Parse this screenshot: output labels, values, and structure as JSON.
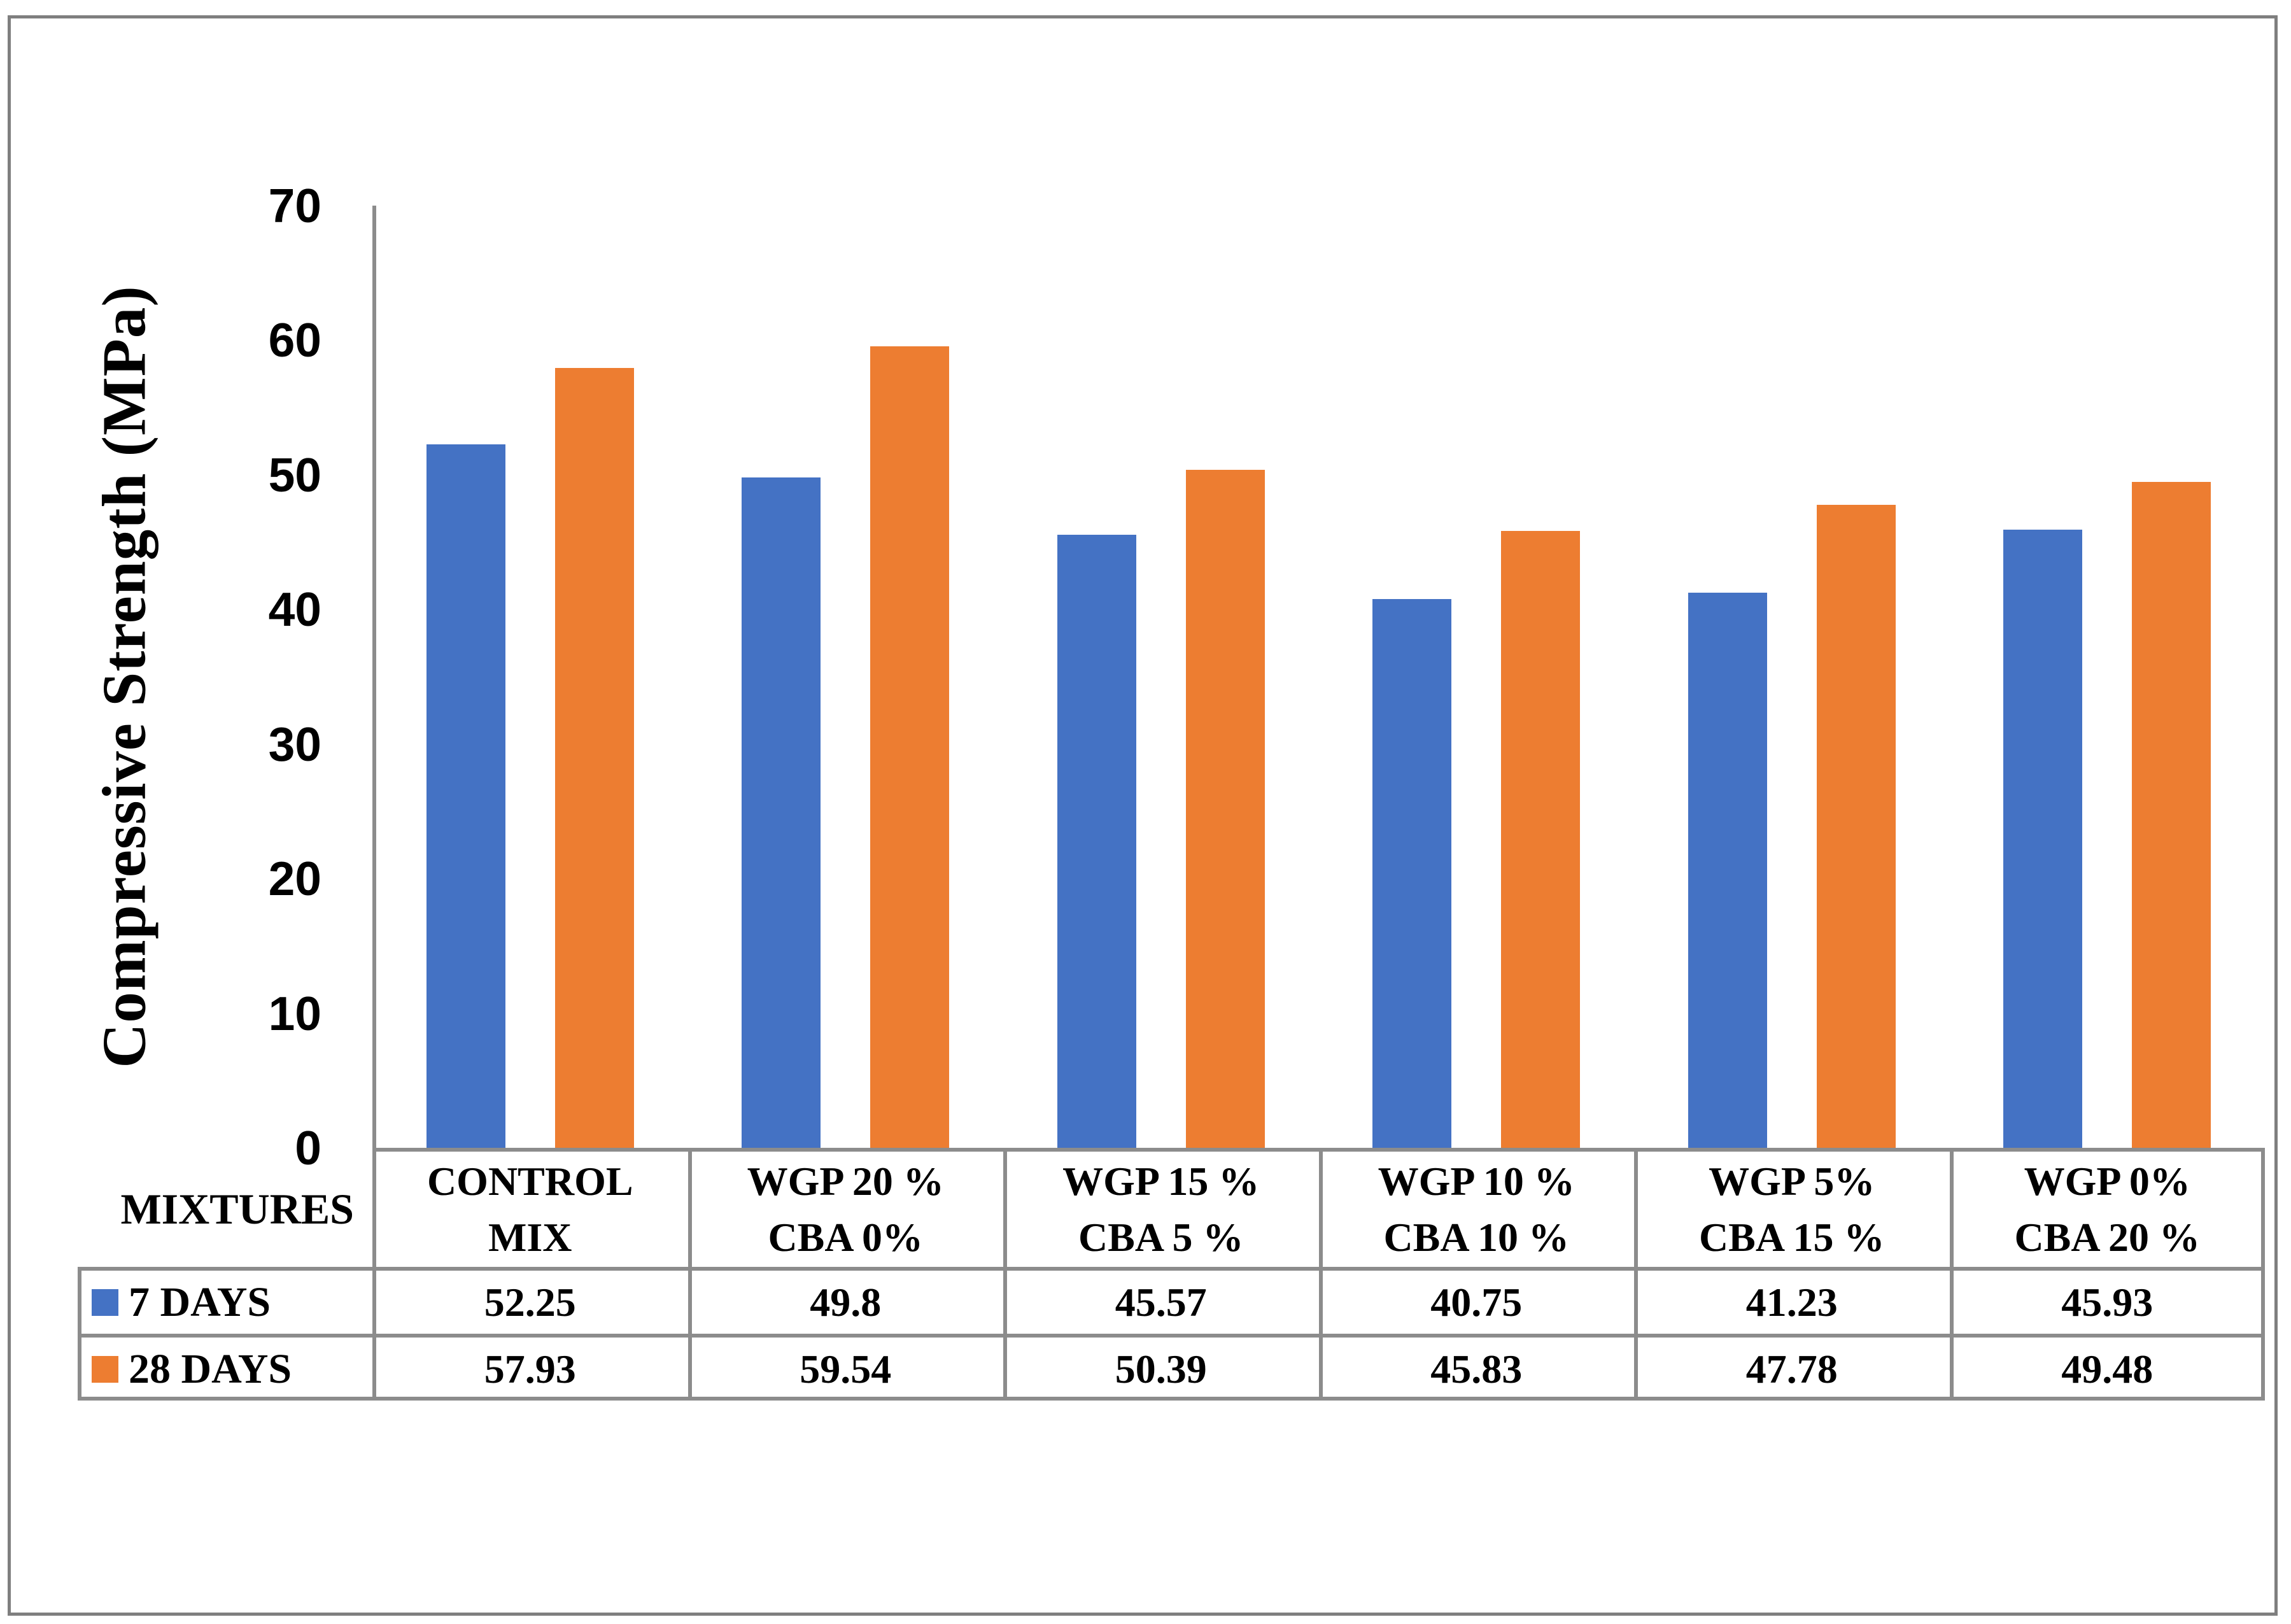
{
  "chart_data": {
    "type": "bar",
    "title": "",
    "y_axis_title": "Compressive Strength (MPa)",
    "x_axis_title": "MIXTURES",
    "ylim": [
      0,
      70
    ],
    "y_ticks": [
      "0",
      "10",
      "20",
      "30",
      "40",
      "50",
      "60",
      "70"
    ],
    "grid": false,
    "legend_position": "table-left",
    "categories": [
      {
        "line1": "CONTROL",
        "line2": "MIX"
      },
      {
        "line1": "WGP 20 %",
        "line2": "CBA 0%"
      },
      {
        "line1": "WGP 15 %",
        "line2": "CBA 5 %"
      },
      {
        "line1": "WGP 10 %",
        "line2": "CBA 10 %"
      },
      {
        "line1": "WGP 5%",
        "line2": "CBA 15 %"
      },
      {
        "line1": "WGP 0%",
        "line2": "CBA 20 %"
      }
    ],
    "series": [
      {
        "name": "7 DAYS",
        "color": "#4472C4",
        "values": [
          "52.25",
          "49.8",
          "45.57",
          "40.75",
          "41.23",
          "45.93"
        ]
      },
      {
        "name": "28 DAYS",
        "color": "#ED7D31",
        "values": [
          "57.93",
          "59.54",
          "50.39",
          "45.83",
          "47.78",
          "49.48"
        ]
      }
    ],
    "colors": {
      "axis_line": "#8c8c8c",
      "table_line": "#8c8c8c",
      "outer_border": "#7f7f7f",
      "series_blue": "#4472C4",
      "series_orange": "#ED7D31"
    }
  }
}
